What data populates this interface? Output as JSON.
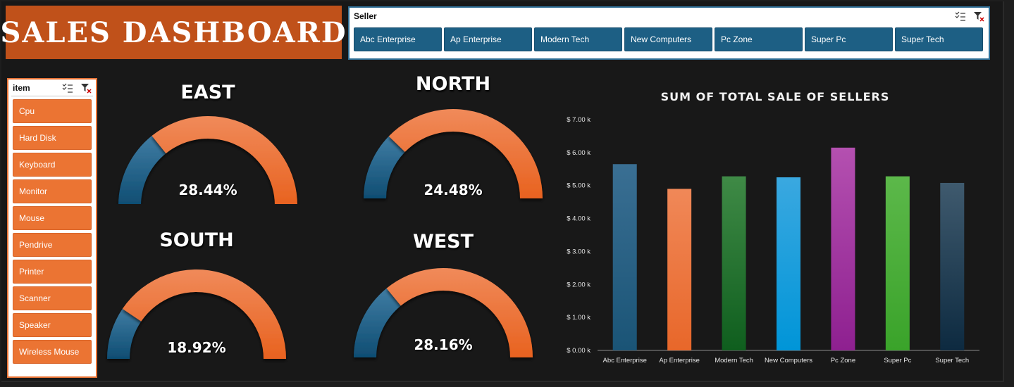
{
  "header": {
    "title": "SALES DASHBOARD"
  },
  "seller_slicer": {
    "title": "Seller",
    "items": [
      "Abc Enterprise",
      "Ap Enterprise",
      "Modern Tech",
      "New Computers",
      "Pc Zone",
      "Super Pc",
      "Super Tech"
    ]
  },
  "item_slicer": {
    "title": "item",
    "items": [
      "Cpu",
      "Hard Disk",
      "Keyboard",
      "Monitor",
      "Mouse",
      "Pendrive",
      "Printer",
      "Scanner",
      "Speaker",
      "Wireless Mouse"
    ]
  },
  "gauges": [
    {
      "region": "EAST",
      "value_text": "28.44%",
      "value": 28.44
    },
    {
      "region": "NORTH",
      "value_text": "24.48%",
      "value": 24.48
    },
    {
      "region": "SOUTH",
      "value_text": "18.92%",
      "value": 18.92
    },
    {
      "region": "WEST",
      "value_text": "28.16%",
      "value": 28.16
    }
  ],
  "colors": {
    "gauge_fill": "#1d5f84",
    "gauge_rest": "#ee7433",
    "title_bg": "#c0511a",
    "slicer_seller_btn": "#1d5f84",
    "slicer_item_btn": "#eb7433"
  },
  "chart_data": {
    "type": "bar",
    "title": "SUM OF TOTAL SALE OF SELLERS",
    "categories": [
      "Abc Enterprise",
      "Ap Enterprise",
      "Modern Tech",
      "New Computers",
      "Pc Zone",
      "Super Pc",
      "Super Tech"
    ],
    "values": [
      5650,
      4900,
      5280,
      5250,
      6150,
      5280,
      5080
    ],
    "bar_colors": [
      [
        "#3a6f93",
        "#1a5476"
      ],
      [
        "#f08858",
        "#e8672a"
      ],
      [
        "#3f8a46",
        "#0f5e1e"
      ],
      [
        "#3aa8e0",
        "#0095d8"
      ],
      [
        "#b450b0",
        "#8e2090"
      ],
      [
        "#5cb84a",
        "#3aa32a"
      ],
      [
        "#3f5a6e",
        "#0d2a40"
      ]
    ],
    "ylim": [
      0,
      7000
    ],
    "yticks": [
      "$ 0.00 k",
      "$ 1.00 k",
      "$ 2.00 k",
      "$ 3.00 k",
      "$ 4.00 k",
      "$ 5.00 k",
      "$ 6.00 k",
      "$ 7.00 k"
    ],
    "xlabel": "",
    "ylabel": "",
    "grid": false
  }
}
